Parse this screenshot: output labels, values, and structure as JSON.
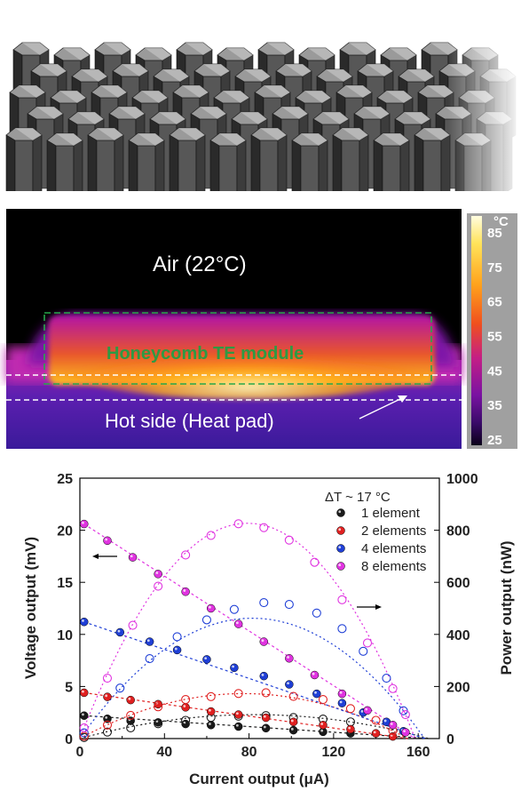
{
  "thermal": {
    "air_label": "Air (22°C)",
    "module_label": "Honeycomb TE module",
    "hot_label": "Hot side (Heat pad)",
    "colorbar_unit": "°C",
    "colorbar_ticks": [
      "85",
      "75",
      "65",
      "55",
      "45",
      "35",
      "25"
    ],
    "colors": {
      "module_label": "#2e9a43",
      "dashed_box": "#27a84a",
      "hot_line": "#ffffff"
    }
  },
  "chart_data": {
    "type": "scatter",
    "xlabel": "Current output (μA)",
    "ylabel_left": "Voltage output (mV)",
    "ylabel_right": "Power output (nW)",
    "x_ticks": [
      "0",
      "40",
      "80",
      "120",
      "160"
    ],
    "y_left_ticks": [
      "0",
      "5",
      "10",
      "15",
      "20",
      "25"
    ],
    "y_right_ticks": [
      "0",
      "200",
      "400",
      "600",
      "800",
      "1000"
    ],
    "xlim": [
      0,
      170
    ],
    "ylim_left": [
      0,
      25
    ],
    "ylim_right": [
      0,
      1000
    ],
    "legend_title": "ΔT ~ 17 °C",
    "legend_position": "top-right",
    "series": [
      {
        "name": "1 element",
        "color": "#1a1a1a",
        "voltage": [
          [
            2,
            2.2
          ],
          [
            13,
            1.9
          ],
          [
            24,
            1.7
          ],
          [
            37,
            1.55
          ],
          [
            50,
            1.4
          ],
          [
            62,
            1.3
          ],
          [
            75,
            1.15
          ],
          [
            88,
            1.0
          ],
          [
            101,
            0.8
          ],
          [
            115,
            0.65
          ],
          [
            128,
            0.5
          ]
        ],
        "power": [
          [
            2,
            4
          ],
          [
            13,
            25
          ],
          [
            24,
            41
          ],
          [
            37,
            57
          ],
          [
            50,
            70
          ],
          [
            62,
            81
          ],
          [
            75,
            86
          ],
          [
            88,
            88
          ],
          [
            101,
            81
          ],
          [
            115,
            75
          ],
          [
            128,
            64
          ]
        ]
      },
      {
        "name": "2 elements",
        "color": "#e02020",
        "voltage": [
          [
            2,
            4.4
          ],
          [
            13,
            4.0
          ],
          [
            24,
            3.7
          ],
          [
            37,
            3.3
          ],
          [
            50,
            3.0
          ],
          [
            62,
            2.6
          ],
          [
            75,
            2.3
          ],
          [
            88,
            2.0
          ],
          [
            101,
            1.6
          ],
          [
            115,
            1.3
          ],
          [
            128,
            0.9
          ],
          [
            140,
            0.5
          ],
          [
            148,
            0.2
          ]
        ],
        "power": [
          [
            2,
            9
          ],
          [
            13,
            52
          ],
          [
            24,
            89
          ],
          [
            37,
            122
          ],
          [
            50,
            150
          ],
          [
            62,
            161
          ],
          [
            75,
            173
          ],
          [
            88,
            176
          ],
          [
            101,
            162
          ],
          [
            115,
            150
          ],
          [
            128,
            115
          ],
          [
            140,
            70
          ],
          [
            148,
            30
          ]
        ]
      },
      {
        "name": "4 elements",
        "color": "#1f3fd6",
        "voltage": [
          [
            2,
            11.2
          ],
          [
            19,
            10.2
          ],
          [
            33,
            9.3
          ],
          [
            46,
            8.5
          ],
          [
            60,
            7.6
          ],
          [
            73,
            6.8
          ],
          [
            87,
            6.0
          ],
          [
            99,
            5.2
          ],
          [
            112,
            4.3
          ],
          [
            124,
            3.4
          ],
          [
            134,
            2.5
          ],
          [
            145,
            1.6
          ],
          [
            153,
            0.7
          ]
        ],
        "power": [
          [
            2,
            22
          ],
          [
            19,
            194
          ],
          [
            33,
            307
          ],
          [
            46,
            391
          ],
          [
            60,
            456
          ],
          [
            73,
            496
          ],
          [
            87,
            522
          ],
          [
            99,
            515
          ],
          [
            112,
            482
          ],
          [
            124,
            422
          ],
          [
            134,
            335
          ],
          [
            145,
            232
          ],
          [
            153,
            107
          ]
        ]
      },
      {
        "name": "8 elements",
        "color": "#e033e0",
        "voltage": [
          [
            2,
            20.6
          ],
          [
            13,
            19.0
          ],
          [
            25,
            17.4
          ],
          [
            37,
            15.8
          ],
          [
            50,
            14.1
          ],
          [
            62,
            12.5
          ],
          [
            75,
            11.0
          ],
          [
            87,
            9.3
          ],
          [
            99,
            7.7
          ],
          [
            111,
            6.1
          ],
          [
            124,
            4.3
          ],
          [
            136,
            2.7
          ],
          [
            148,
            1.3
          ],
          [
            154,
            0.6
          ]
        ],
        "power": [
          [
            2,
            41
          ],
          [
            13,
            232
          ],
          [
            25,
            435
          ],
          [
            37,
            585
          ],
          [
            50,
            705
          ],
          [
            62,
            780
          ],
          [
            75,
            825
          ],
          [
            87,
            810
          ],
          [
            99,
            762
          ],
          [
            111,
            677
          ],
          [
            124,
            533
          ],
          [
            136,
            367
          ],
          [
            148,
            192
          ],
          [
            154,
            92
          ]
        ]
      }
    ],
    "arrows": {
      "voltage_direction": "left",
      "power_direction": "right"
    }
  }
}
